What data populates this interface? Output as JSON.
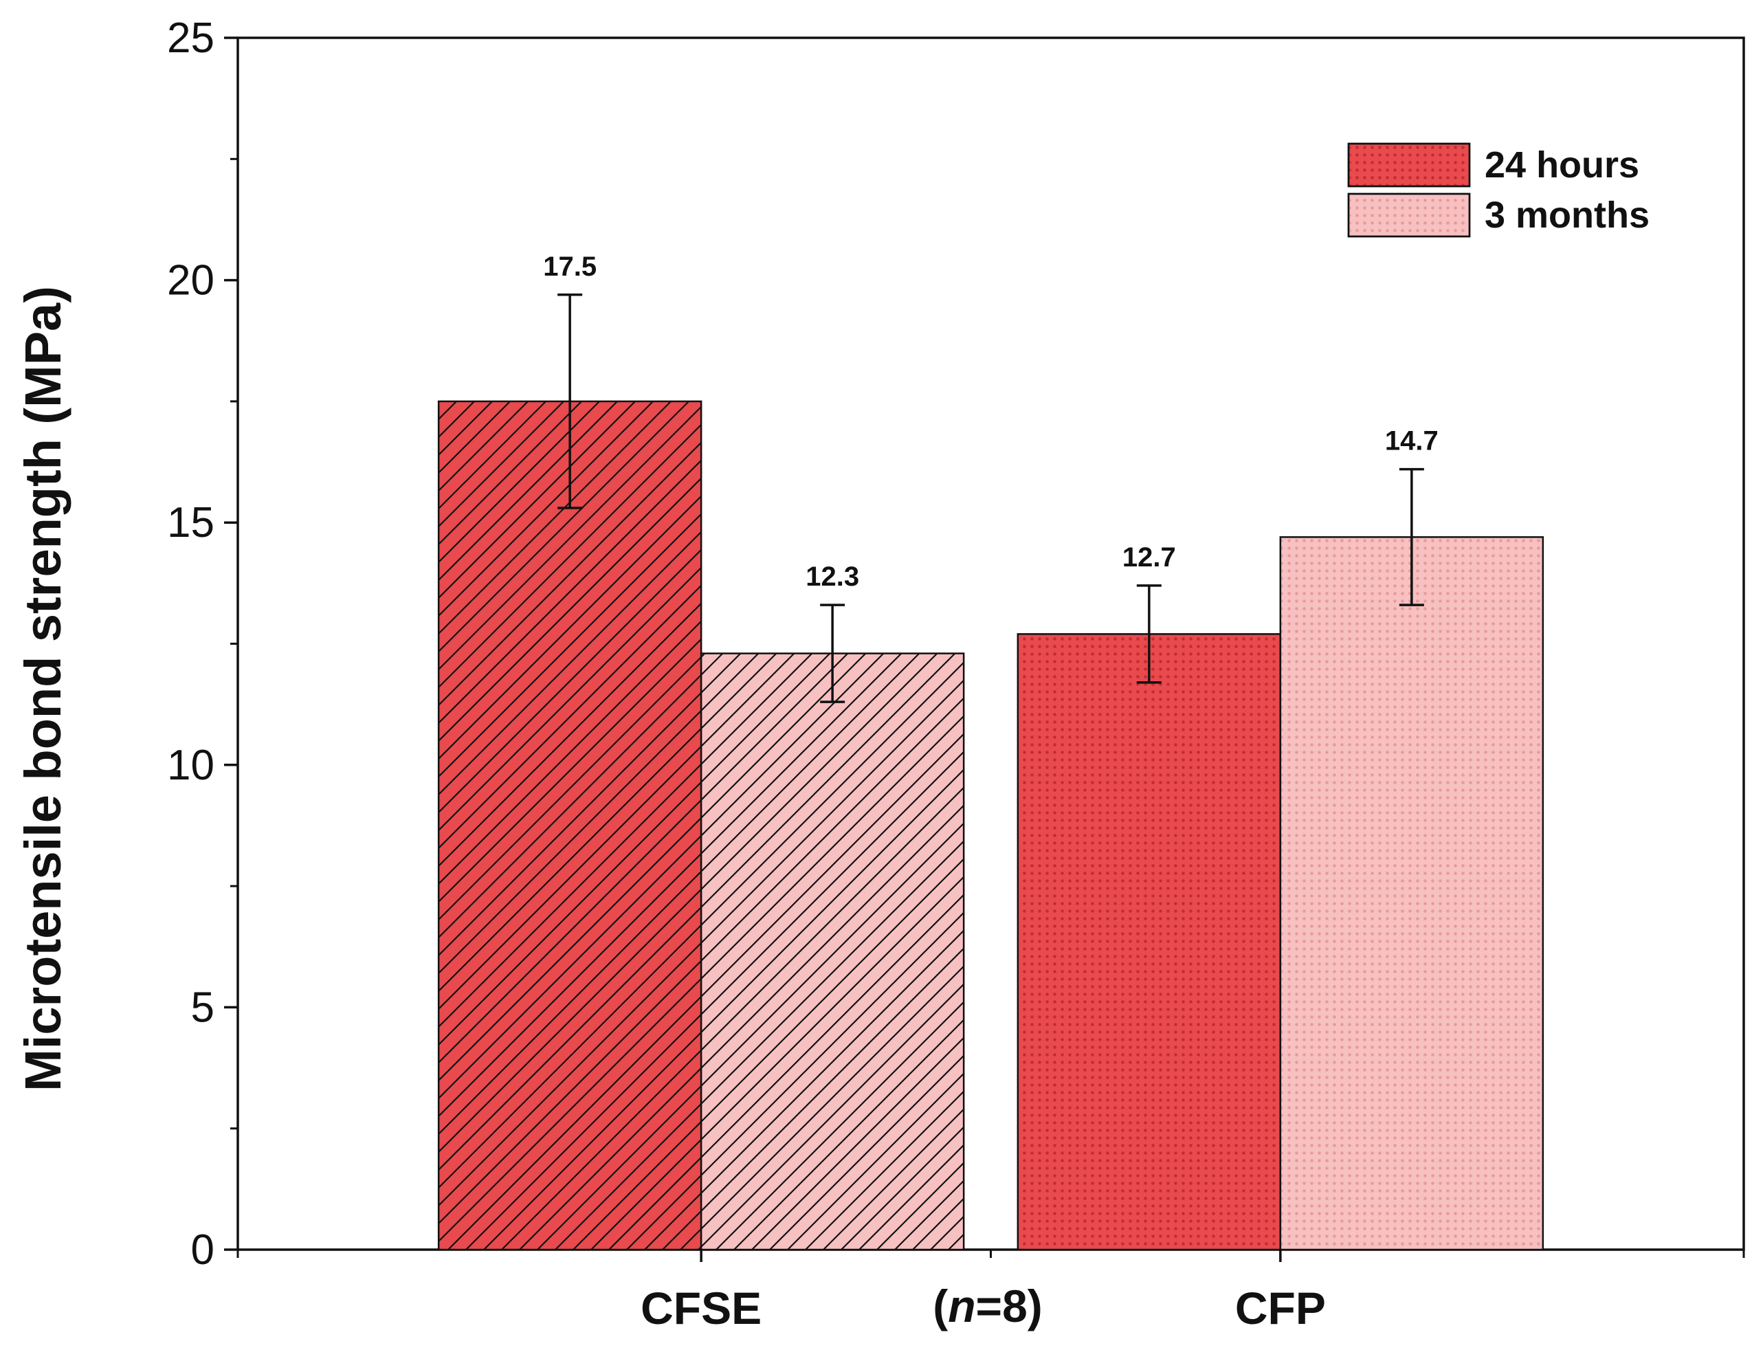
{
  "chart_data": {
    "type": "bar",
    "categories": [
      "CFSE",
      "CFP"
    ],
    "series": [
      {
        "name": "24 hours",
        "values": [
          17.5,
          12.7
        ],
        "errors": [
          2.2,
          1.0
        ],
        "data_labels": [
          "17.5",
          "12.7"
        ],
        "color": "#e84a4d",
        "patterns": [
          "hatch",
          "dots"
        ]
      },
      {
        "name": "3 months",
        "values": [
          12.3,
          14.7
        ],
        "errors": [
          1.0,
          1.4
        ],
        "data_labels": [
          "12.3",
          "14.7"
        ],
        "color": "#f7c0c1",
        "patterns": [
          "hatch",
          "dots"
        ]
      }
    ],
    "title": "",
    "xlabel": "",
    "ylabel": "Microtensile bond strength (MPa)",
    "ylim": [
      0,
      25
    ],
    "yticks": [
      0,
      5,
      10,
      15,
      20,
      25
    ],
    "ytick_labels": [
      "0",
      "5",
      "10",
      "15",
      "20",
      "25"
    ],
    "legend_position": "top-right",
    "annotation": {
      "prefix": "(",
      "italic": "n",
      "suffix": "=8)"
    }
  }
}
